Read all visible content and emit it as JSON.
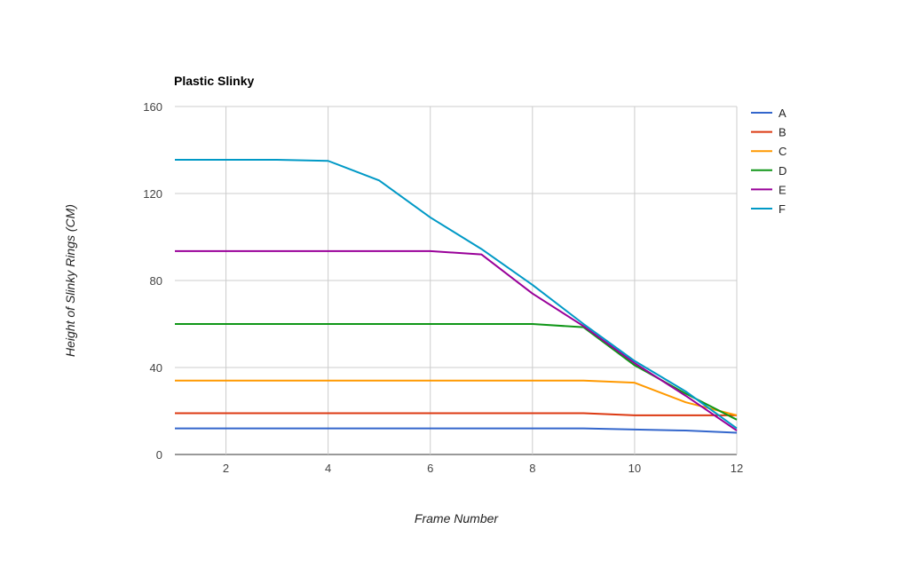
{
  "chart_data": {
    "type": "line",
    "title": "Plastic Slinky",
    "xlabel": "Frame Number",
    "ylabel": "Height of Slinky Rings (CM)",
    "xlim": [
      1,
      12
    ],
    "ylim": [
      0,
      160
    ],
    "xticks": [
      2,
      4,
      6,
      8,
      10,
      12
    ],
    "yticks": [
      0,
      40,
      80,
      120,
      160
    ],
    "grid": true,
    "legend_position": "right",
    "x": [
      1,
      2,
      3,
      4,
      5,
      6,
      7,
      8,
      9,
      10,
      11,
      12
    ],
    "series": [
      {
        "name": "A",
        "color": "#3366cc",
        "values": [
          12,
          12,
          12,
          12,
          12,
          12,
          12,
          12,
          12,
          11.5,
          11,
          10
        ]
      },
      {
        "name": "B",
        "color": "#dc3912",
        "values": [
          19,
          19,
          19,
          19,
          19,
          19,
          19,
          19,
          19,
          18,
          18,
          18
        ]
      },
      {
        "name": "C",
        "color": "#ff9900",
        "values": [
          34,
          34,
          34,
          34,
          34,
          34,
          34,
          34,
          34,
          33,
          24,
          18
        ]
      },
      {
        "name": "D",
        "color": "#109618",
        "values": [
          60,
          60,
          60,
          60,
          60,
          60,
          60,
          60,
          58.5,
          41,
          28,
          16
        ]
      },
      {
        "name": "E",
        "color": "#990099",
        "values": [
          93.5,
          93.5,
          93.5,
          93.5,
          93.5,
          93.5,
          92,
          74,
          59,
          42,
          27,
          11
        ]
      },
      {
        "name": "F",
        "color": "#0099c6",
        "values": [
          135.5,
          135.5,
          135.5,
          135,
          126,
          109,
          94.5,
          78,
          60,
          43,
          29,
          12
        ]
      }
    ]
  }
}
